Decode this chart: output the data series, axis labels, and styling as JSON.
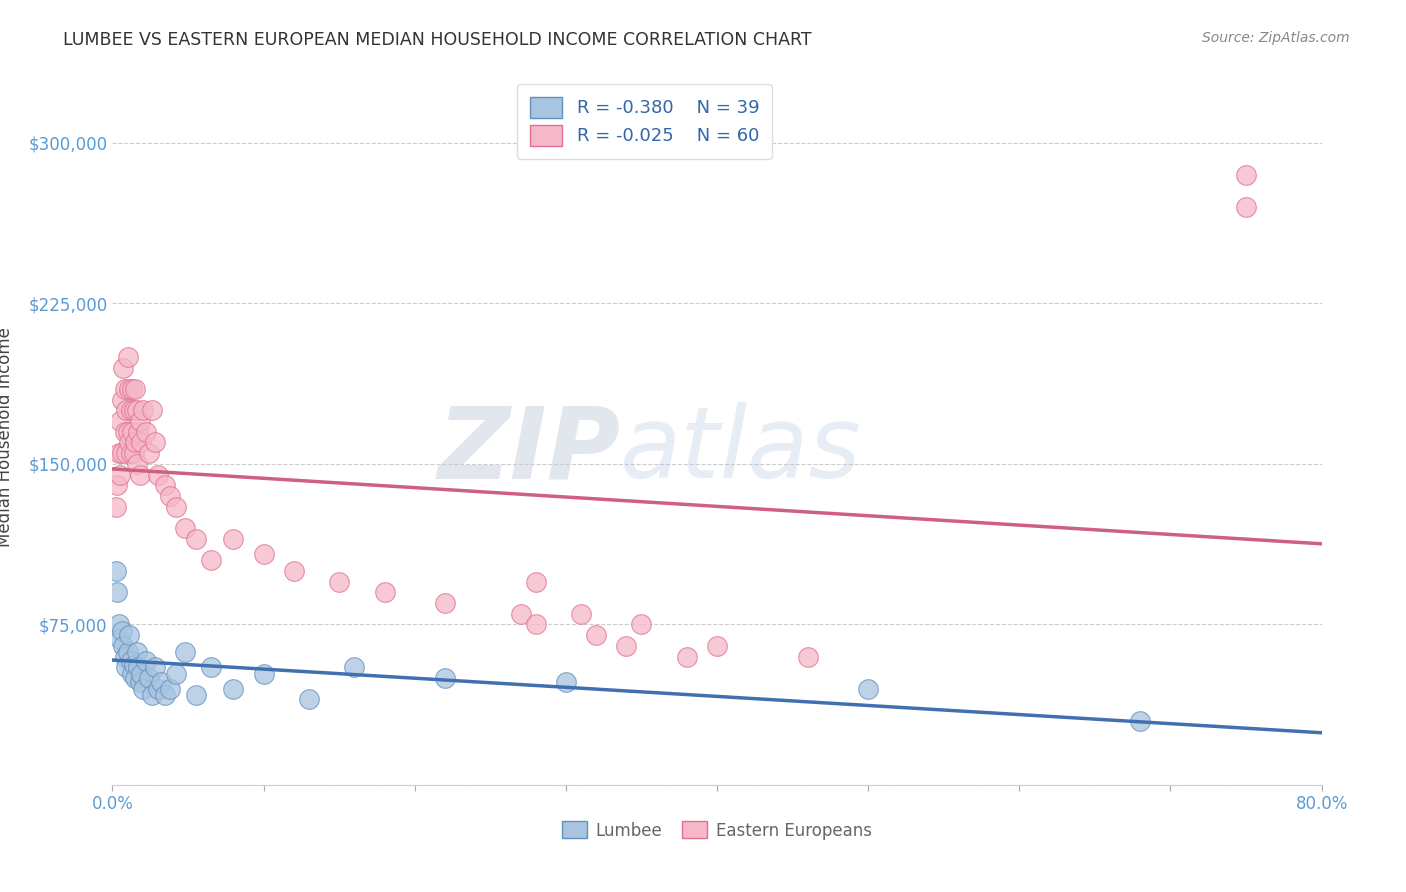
{
  "title": "LUMBEE VS EASTERN EUROPEAN MEDIAN HOUSEHOLD INCOME CORRELATION CHART",
  "source": "Source: ZipAtlas.com",
  "xlabel_lumbee": "Lumbee",
  "xlabel_eastern": "Eastern Europeans",
  "ylabel": "Median Household Income",
  "xlim": [
    0.0,
    0.8
  ],
  "ylim": [
    0,
    325000
  ],
  "xticks": [
    0.0,
    0.1,
    0.2,
    0.3,
    0.4,
    0.5,
    0.6,
    0.7,
    0.8
  ],
  "xticklabels": [
    "0.0%",
    "",
    "",
    "",
    "",
    "",
    "",
    "",
    "80.0%"
  ],
  "yticks": [
    0,
    75000,
    150000,
    225000,
    300000
  ],
  "yticklabels": [
    "",
    "$75,000",
    "$150,000",
    "$225,000",
    "$300,000"
  ],
  "legend_r_blue": "R = -0.380",
  "legend_n_blue": "N = 39",
  "legend_r_pink": "R = -0.025",
  "legend_n_pink": "N = 60",
  "blue_fill": "#A8C4E0",
  "pink_fill": "#F4B8C8",
  "blue_edge": "#6090C0",
  "pink_edge": "#E07090",
  "blue_line": "#4070B0",
  "pink_line": "#D06080",
  "watermark_zip": "ZIP",
  "watermark_atlas": "atlas",
  "grid_color": "#CCCCCC",
  "lumbee_x": [
    0.002,
    0.003,
    0.004,
    0.005,
    0.006,
    0.007,
    0.008,
    0.009,
    0.01,
    0.011,
    0.012,
    0.013,
    0.014,
    0.015,
    0.016,
    0.017,
    0.018,
    0.019,
    0.02,
    0.022,
    0.024,
    0.026,
    0.028,
    0.03,
    0.032,
    0.035,
    0.038,
    0.042,
    0.048,
    0.055,
    0.065,
    0.08,
    0.1,
    0.13,
    0.16,
    0.22,
    0.3,
    0.5,
    0.68
  ],
  "lumbee_y": [
    100000,
    90000,
    75000,
    68000,
    72000,
    65000,
    60000,
    55000,
    62000,
    70000,
    58000,
    52000,
    56000,
    50000,
    62000,
    55000,
    48000,
    52000,
    45000,
    58000,
    50000,
    42000,
    55000,
    45000,
    48000,
    42000,
    45000,
    52000,
    62000,
    42000,
    55000,
    45000,
    52000,
    40000,
    55000,
    50000,
    48000,
    45000,
    30000
  ],
  "eastern_x": [
    0.002,
    0.003,
    0.004,
    0.005,
    0.005,
    0.006,
    0.006,
    0.007,
    0.008,
    0.008,
    0.009,
    0.009,
    0.01,
    0.01,
    0.011,
    0.011,
    0.012,
    0.012,
    0.013,
    0.013,
    0.014,
    0.014,
    0.015,
    0.015,
    0.016,
    0.016,
    0.017,
    0.018,
    0.018,
    0.019,
    0.02,
    0.022,
    0.024,
    0.026,
    0.028,
    0.03,
    0.035,
    0.038,
    0.042,
    0.048,
    0.055,
    0.065,
    0.08,
    0.1,
    0.12,
    0.15,
    0.18,
    0.22,
    0.27,
    0.28,
    0.32,
    0.34,
    0.38,
    0.28,
    0.31,
    0.35,
    0.4,
    0.46,
    0.75,
    0.75
  ],
  "eastern_y": [
    130000,
    140000,
    155000,
    170000,
    145000,
    180000,
    155000,
    195000,
    165000,
    185000,
    175000,
    155000,
    200000,
    165000,
    185000,
    160000,
    175000,
    155000,
    185000,
    165000,
    175000,
    155000,
    185000,
    160000,
    175000,
    150000,
    165000,
    170000,
    145000,
    160000,
    175000,
    165000,
    155000,
    175000,
    160000,
    145000,
    140000,
    135000,
    130000,
    120000,
    115000,
    105000,
    115000,
    108000,
    100000,
    95000,
    90000,
    85000,
    80000,
    75000,
    70000,
    65000,
    60000,
    95000,
    80000,
    75000,
    65000,
    60000,
    285000,
    270000
  ]
}
